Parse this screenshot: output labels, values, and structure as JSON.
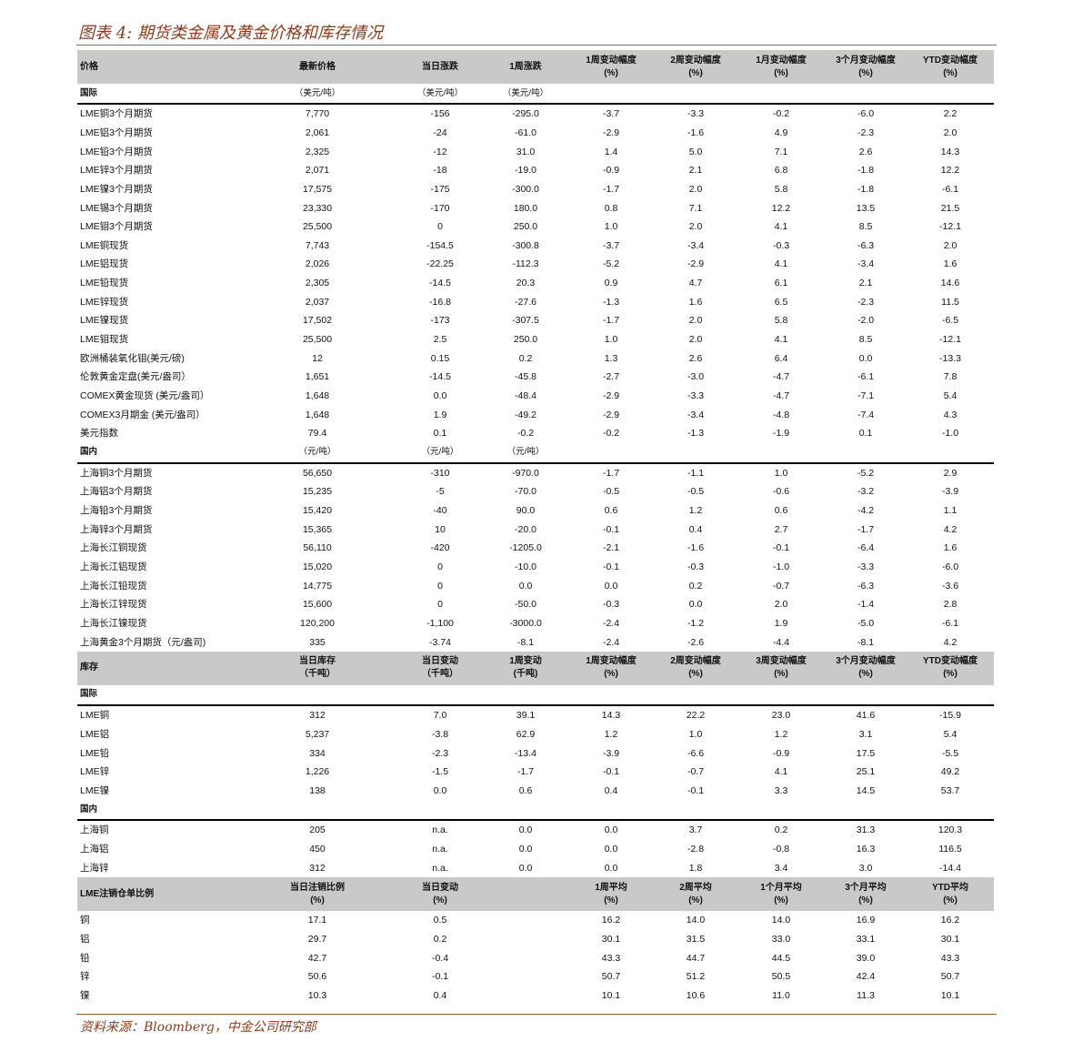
{
  "title": "图表 4:  期货类金属及黄金价格和库存情况",
  "source": "资料来源：Bloomberg，中金公司研究部",
  "colors": {
    "accent": "#8a3b1c",
    "header_bg": "#c9c9c9"
  },
  "blocks": [
    {
      "type": "header",
      "cells": [
        "价格",
        "最新价格",
        "当日涨跌",
        "1周涨跌",
        "1周变动幅度\n(%)",
        "2周变动幅度\n(%)",
        "1月变动幅度\n(%)",
        "3个月变动幅度\n(%)",
        "YTD变动幅度\n(%)"
      ]
    },
    {
      "type": "sub",
      "cells": [
        "国际",
        "（美元/吨）",
        "（美元/吨）",
        "（美元/吨）"
      ]
    },
    {
      "type": "data",
      "rows": [
        [
          "LME铜3个月期货",
          "7,770",
          "-156",
          "-295.0",
          "-3.7",
          "-3.3",
          "-0.2",
          "-6.0",
          "2.2"
        ],
        [
          "LME铝3个月期货",
          "2,061",
          "-24",
          "-61.0",
          "-2.9",
          "-1.6",
          "4.9",
          "-2.3",
          "2.0"
        ],
        [
          "LME铅3个月期货",
          "2,325",
          "-12",
          "31.0",
          "1.4",
          "5.0",
          "7.1",
          "2.6",
          "14.3"
        ],
        [
          "LME锌3个月期货",
          "2,071",
          "-18",
          "-19.0",
          "-0.9",
          "2.1",
          "6.8",
          "-1.8",
          "12.2"
        ],
        [
          "LME镍3个月期货",
          "17,575",
          "-175",
          "-300.0",
          "-1.7",
          "2.0",
          "5.8",
          "-1.8",
          "-6.1"
        ],
        [
          "LME锡3个月期货",
          "23,330",
          "-170",
          "180.0",
          "0.8",
          "7.1",
          "12.2",
          "13.5",
          "21.5"
        ],
        [
          "LME钼3个月期货",
          "25,500",
          "0",
          "250.0",
          "1.0",
          "2.0",
          "4.1",
          "8.5",
          "-12.1"
        ],
        [
          "LME铜现货",
          "7,743",
          "-154.5",
          "-300.8",
          "-3.7",
          "-3.4",
          "-0.3",
          "-6.3",
          "2.0"
        ],
        [
          "LME铝现货",
          "2,026",
          "-22.25",
          "-112.3",
          "-5.2",
          "-2.9",
          "4.1",
          "-3.4",
          "1.6"
        ],
        [
          "LME铅现货",
          "2,305",
          "-14.5",
          "20.3",
          "0.9",
          "4.7",
          "6.1",
          "2.1",
          "14.6"
        ],
        [
          "LME锌现货",
          "2,037",
          "-16.8",
          "-27.6",
          "-1.3",
          "1.6",
          "6.5",
          "-2.3",
          "11.5"
        ],
        [
          "LME镍现货",
          "17,502",
          "-173",
          "-307.5",
          "-1.7",
          "2.0",
          "5.8",
          "-2.0",
          "-6.5"
        ],
        [
          "LME钼现货",
          "25,500",
          "2.5",
          "250.0",
          "1.0",
          "2.0",
          "4.1",
          "8.5",
          "-12.1"
        ],
        [
          "欧洲桶装氧化钼(美元/磅)",
          "12",
          "0.15",
          "0.2",
          "1.3",
          "2.6",
          "6.4",
          "0.0",
          "-13.3"
        ],
        [
          "伦敦黄金定盘(美元/盎司）",
          "1,651",
          "-14.5",
          "-45.8",
          "-2.7",
          "-3.0",
          "-4.7",
          "-6.1",
          "7.8"
        ],
        [
          "COMEX黄金现货 (美元/盎司）",
          "1,648",
          "0.0",
          "-48.4",
          "-2.9",
          "-3.3",
          "-4.7",
          "-7.1",
          "5.4"
        ],
        [
          "COMEX3月期金 (美元/盎司）",
          "1,648",
          "1.9",
          "-49.2",
          "-2.9",
          "-3.4",
          "-4.8",
          "-7.4",
          "4.3"
        ],
        [
          "美元指数",
          "79.4",
          "0.1",
          "-0.2",
          "-0.2",
          "-1.3",
          "-1.9",
          "0.1",
          "-1.0"
        ]
      ]
    },
    {
      "type": "sub",
      "cells": [
        "国内",
        "（元/吨）",
        "（元/吨）",
        "（元/吨）"
      ]
    },
    {
      "type": "data",
      "rows": [
        [
          "上海铜3个月期货",
          "56,650",
          "-310",
          "-970.0",
          "-1.7",
          "-1.1",
          "1.0",
          "-5.2",
          "2.9"
        ],
        [
          "上海铝3个月期货",
          "15,235",
          "-5",
          "-70.0",
          "-0.5",
          "-0.5",
          "-0.6",
          "-3.2",
          "-3.9"
        ],
        [
          "上海铅3个月期货",
          "15,420",
          "-40",
          "90.0",
          "0.6",
          "1.2",
          "0.6",
          "-4.2",
          "1.1"
        ],
        [
          "上海锌3个月期货",
          "15,365",
          "10",
          "-20.0",
          "-0.1",
          "0.4",
          "2.7",
          "-1.7",
          "4.2"
        ],
        [
          "上海长江铜现货",
          "56,110",
          "-420",
          "-1205.0",
          "-2.1",
          "-1.6",
          "-0.1",
          "-6.4",
          "1.6"
        ],
        [
          "上海长江铝现货",
          "15,020",
          "0",
          "-10.0",
          "-0.1",
          "-0.3",
          "-1.0",
          "-3.3",
          "-6.0"
        ],
        [
          "上海长江铅现货",
          "14,775",
          "0",
          "0.0",
          "0.0",
          "0.2",
          "-0.7",
          "-6.3",
          "-3.6"
        ],
        [
          "上海长江锌现货",
          "15,600",
          "0",
          "-50.0",
          "-0.3",
          "0.0",
          "2.0",
          "-1.4",
          "2.8"
        ],
        [
          "上海长江镍现货",
          "120,200",
          "-1,100",
          "-3000.0",
          "-2.4",
          "-1.2",
          "1.9",
          "-5.0",
          "-6.1"
        ],
        [
          "上海黄金3个月期货（元/盎司)",
          "335",
          "-3.74",
          "-8.1",
          "-2.4",
          "-2.6",
          "-4.4",
          "-8.1",
          "4.2"
        ]
      ]
    },
    {
      "type": "header",
      "cells": [
        "库存",
        "当日库存\n（千吨）",
        "当日变动\n（千吨）",
        "1周变动\n(千吨)",
        "1周变动幅度\n(%)",
        "2周变动幅度\n(%)",
        "3周变动幅度\n(%)",
        "3个月变动幅度\n(%)",
        "YTD变动幅度\n(%)"
      ]
    },
    {
      "type": "sub",
      "cells": [
        "国际"
      ]
    },
    {
      "type": "data",
      "rows": [
        [
          "LME铜",
          "312",
          "7.0",
          "39.1",
          "14.3",
          "22.2",
          "23.0",
          "41.6",
          "-15.9"
        ],
        [
          "LME铝",
          "5,237",
          "-3.8",
          "62.9",
          "1.2",
          "1.0",
          "1.2",
          "3.1",
          "5.4"
        ],
        [
          "LME铅",
          "334",
          "-2.3",
          "-13.4",
          "-3.9",
          "-6.6",
          "-0.9",
          "17.5",
          "-5.5"
        ],
        [
          "LME锌",
          "1,226",
          "-1.5",
          "-1.7",
          "-0.1",
          "-0.7",
          "4.1",
          "25.1",
          "49.2"
        ],
        [
          "LME镍",
          "138",
          "0.0",
          "0.6",
          "0.4",
          "-0.1",
          "3.3",
          "14.5",
          "53.7"
        ]
      ]
    },
    {
      "type": "sub",
      "cells": [
        "国内"
      ]
    },
    {
      "type": "data",
      "rows": [
        [
          "上海铜",
          "205",
          "n.a.",
          "0.0",
          "0.0",
          "3.7",
          "0.2",
          "31.3",
          "120.3"
        ],
        [
          "上海铝",
          "450",
          "n.a.",
          "0.0",
          "0.0",
          "-2.8",
          "-0.8",
          "16.3",
          "116.5"
        ],
        [
          "上海锌",
          "312",
          "n.a.",
          "0.0",
          "0.0",
          "1.8",
          "3.4",
          "3.0",
          "-14.4"
        ]
      ]
    },
    {
      "type": "header",
      "cells": [
        "LME注销仓单比例",
        "当日注销比例\n(%)",
        "当日变动\n(%)",
        "",
        "1周平均\n(%)",
        "2周平均\n(%)",
        "1个月平均\n(%)",
        "3个月平均\n(%)",
        "YTD平均\n(%)"
      ]
    },
    {
      "type": "data",
      "rows": [
        [
          "铜",
          "17.1",
          "0.5",
          "",
          "16.2",
          "14.0",
          "14.0",
          "16.9",
          "16.2"
        ],
        [
          "铝",
          "29.7",
          "0.2",
          "",
          "30.1",
          "31.5",
          "33.0",
          "33.1",
          "30.1"
        ],
        [
          "铅",
          "42.7",
          "-0.4",
          "",
          "43.3",
          "44.7",
          "44.5",
          "39.0",
          "43.3"
        ],
        [
          "锌",
          "50.6",
          "-0.1",
          "",
          "50.7",
          "51.2",
          "50.5",
          "42.4",
          "50.7"
        ],
        [
          "镍",
          "10.3",
          "0.4",
          "",
          "10.1",
          "10.6",
          "11.0",
          "11.3",
          "10.1"
        ]
      ]
    }
  ]
}
